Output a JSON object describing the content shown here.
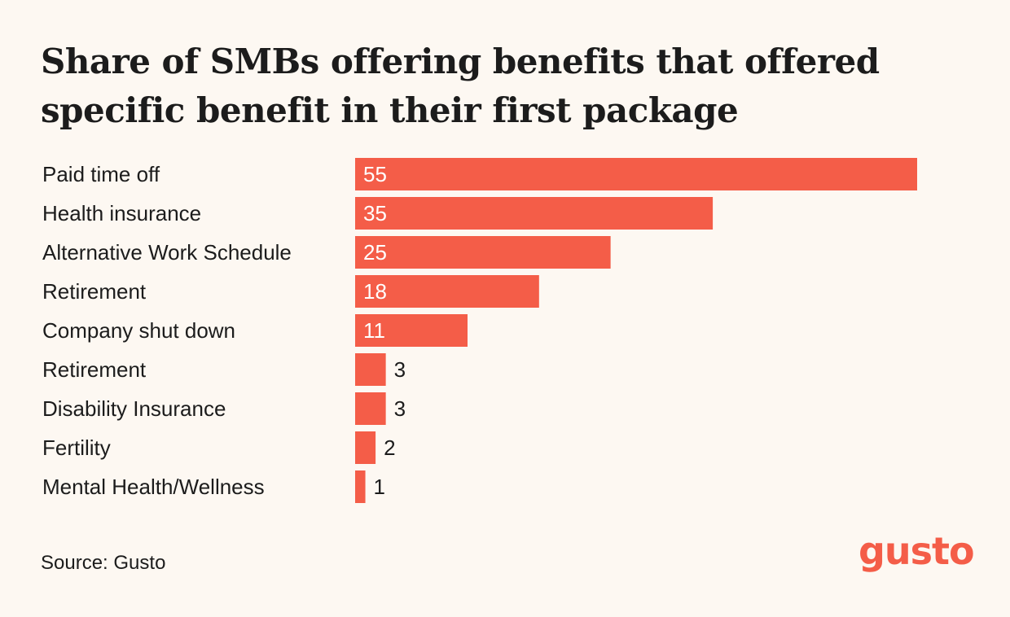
{
  "title": "Share of SMBs offering benefits that offered specific benefit in their first package",
  "source": "Source: Gusto",
  "brand": "gusto",
  "colors": {
    "bar": "#f45d48",
    "background": "#fdf8f2",
    "text": "#1c1c1c",
    "inside_label": "#ffffff"
  },
  "chart_data": {
    "type": "bar",
    "orientation": "horizontal",
    "title": "Share of SMBs offering benefits that offered specific benefit in their first package",
    "categories": [
      "Paid time off",
      "Health insurance",
      "Alternative Work Schedule",
      "Retirement",
      "Company shut down",
      "Retirement",
      "Disability Insurance",
      "Fertility",
      "Mental Health/Wellness"
    ],
    "values": [
      55,
      35,
      25,
      18,
      11,
      3,
      3,
      2,
      1
    ],
    "value_labels": [
      "55",
      "35",
      "25",
      "18",
      "11",
      "3",
      "3",
      "2",
      "1"
    ],
    "xlabel": "",
    "ylabel": "",
    "xlim": [
      0,
      55
    ],
    "grid": false,
    "legend": "none"
  }
}
